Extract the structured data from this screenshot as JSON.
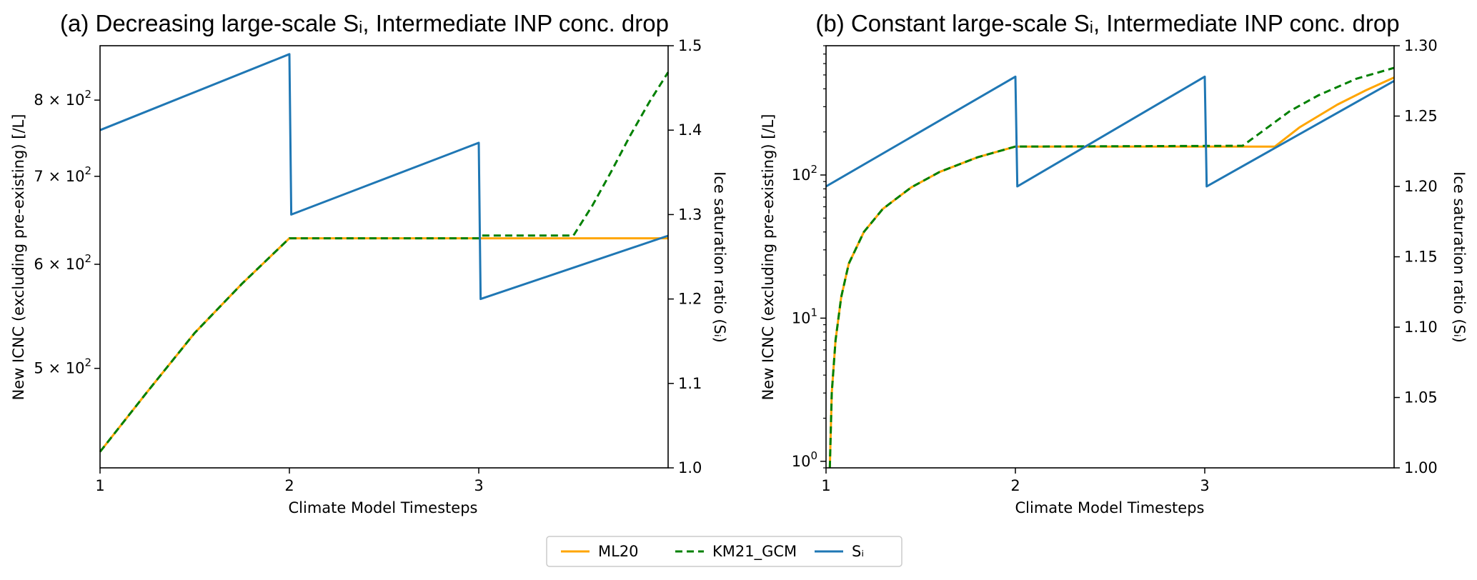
{
  "chart_data": [
    {
      "type": "line",
      "title": "(a) Decreasing large-scale Sᵢ, Intermediate INP conc. drop",
      "xlabel": "Climate Model Timesteps",
      "ylabel": "New ICNC (excluding pre-existing) [/L]",
      "y2label": "Ice saturation ratio (Sᵢ)",
      "xlim": [
        1,
        4
      ],
      "x_ticks": [
        "1",
        "2",
        "3"
      ],
      "y_scale": "log",
      "ylim": [
        420,
        880
      ],
      "y_ticks": [
        {
          "value": 500,
          "mant": "5",
          "exp": "2"
        },
        {
          "value": 600,
          "mant": "6",
          "exp": "2"
        },
        {
          "value": 700,
          "mant": "7",
          "exp": "2"
        },
        {
          "value": 800,
          "mant": "8",
          "exp": "2"
        }
      ],
      "y2lim": [
        1.0,
        1.5
      ],
      "y2_ticks": [
        "1.0",
        "1.1",
        "1.2",
        "1.3",
        "1.4",
        "1.5"
      ],
      "series": [
        {
          "name": "ML20",
          "axis": "left",
          "color": "#ffa500",
          "dash": "solid",
          "x": [
            1,
            1.25,
            1.5,
            1.75,
            2,
            3,
            4
          ],
          "y": [
            432,
            480,
            532,
            580,
            628,
            628,
            628
          ]
        },
        {
          "name": "KM21_GCM",
          "axis": "left",
          "color": "#008000",
          "dash": "dashed",
          "x": [
            1,
            1.25,
            1.5,
            1.75,
            2,
            3,
            3.01,
            3.5,
            3.6,
            3.7,
            3.8,
            3.9,
            4
          ],
          "y": [
            432,
            480,
            532,
            580,
            628,
            628,
            631,
            631,
            665,
            706,
            752,
            797,
            840
          ]
        },
        {
          "name": "Sᵢ",
          "axis": "right",
          "color": "#1f77b4",
          "dash": "solid",
          "x": [
            1,
            2,
            2.01,
            3,
            3.01,
            4
          ],
          "y": [
            1.4,
            1.49,
            1.3,
            1.385,
            1.2,
            1.275
          ]
        }
      ]
    },
    {
      "type": "line",
      "title": "(b) Constant large-scale Sᵢ, Intermediate INP conc. drop",
      "xlabel": "Climate Model Timesteps",
      "ylabel": "New ICNC (excluding pre-existing) [/L]",
      "y2label": "Ice saturation ratio (Sᵢ)",
      "xlim": [
        1,
        4
      ],
      "x_ticks": [
        "1",
        "2",
        "3"
      ],
      "y_scale": "log",
      "ylim": [
        0.9,
        800
      ],
      "y_ticks": [
        {
          "value": 1,
          "mant": "10",
          "exp": "0"
        },
        {
          "value": 10,
          "mant": "10",
          "exp": "1"
        },
        {
          "value": 100,
          "mant": "10",
          "exp": "2"
        }
      ],
      "y2lim": [
        1.0,
        1.3
      ],
      "y2_ticks": [
        "1.00",
        "1.05",
        "1.10",
        "1.15",
        "1.20",
        "1.25",
        "1.30"
      ],
      "series": [
        {
          "name": "ML20",
          "axis": "left",
          "color": "#ffa500",
          "dash": "solid",
          "x": [
            1.02,
            1.03,
            1.05,
            1.08,
            1.12,
            1.2,
            1.3,
            1.45,
            1.6,
            1.8,
            2,
            3.37,
            3.5,
            3.7,
            3.85,
            4
          ],
          "y": [
            0.9,
            3,
            7,
            14,
            24,
            40,
            58,
            82,
            105,
            133,
            158,
            158,
            215,
            310,
            390,
            480
          ]
        },
        {
          "name": "KM21_GCM",
          "axis": "left",
          "color": "#008000",
          "dash": "dashed",
          "x": [
            1.02,
            1.03,
            1.05,
            1.08,
            1.12,
            1.2,
            1.3,
            1.45,
            1.6,
            1.8,
            2,
            3.2,
            3.3,
            3.45,
            3.6,
            3.8,
            4
          ],
          "y": [
            0.9,
            3,
            7,
            14,
            24,
            40,
            58,
            82,
            105,
            133,
            158,
            160,
            200,
            280,
            360,
            470,
            560
          ]
        },
        {
          "name": "Sᵢ",
          "axis": "right",
          "color": "#1f77b4",
          "dash": "solid",
          "x": [
            1,
            2,
            2.01,
            3,
            3.01,
            4
          ],
          "y": [
            1.2,
            1.278,
            1.2,
            1.278,
            1.2,
            1.275
          ]
        }
      ]
    }
  ],
  "legend": {
    "position": "bottom-center",
    "items": [
      {
        "label": "ML20",
        "color": "#ffa500",
        "dash": "solid"
      },
      {
        "label": "KM21_GCM",
        "color": "#008000",
        "dash": "dashed"
      },
      {
        "label": "Sᵢ",
        "color": "#1f77b4",
        "dash": "solid"
      }
    ]
  }
}
